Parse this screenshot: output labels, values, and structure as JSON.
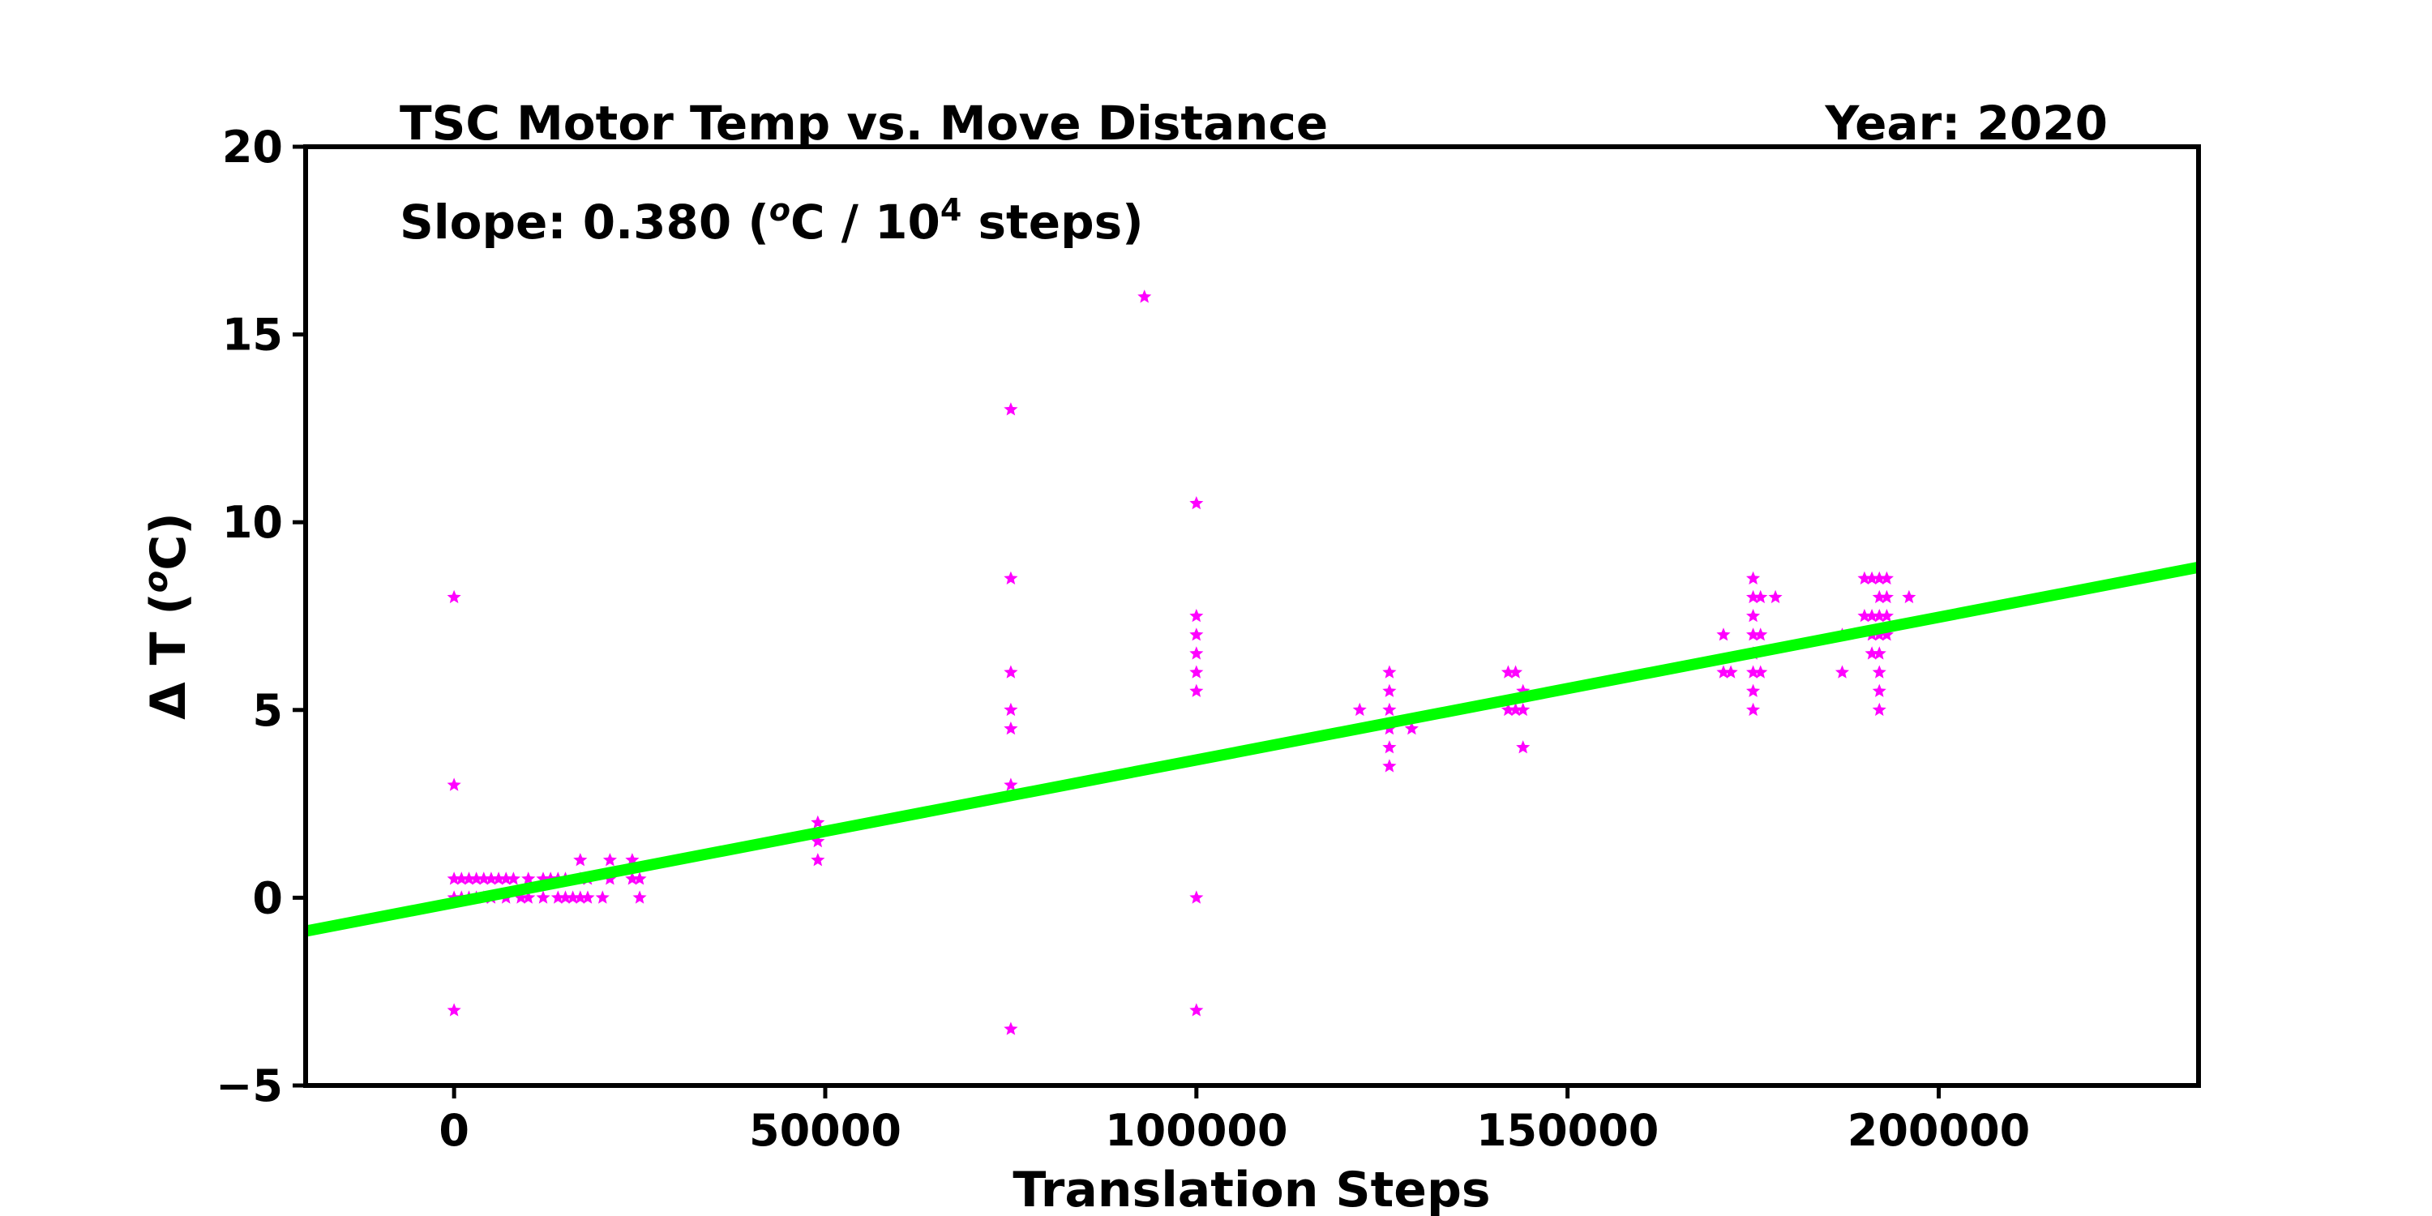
{
  "chart_data": {
    "type": "scatter",
    "title": "TSC Motor Temp vs. Move Distance",
    "year_label": "Year: 2020",
    "slope_annotation": {
      "prefix": "Slope:  0.380 (",
      "unit_superscript_o": "o",
      "unit_middle": "C / 10",
      "unit_superscript_exp": "4",
      "unit_suffix": " steps)"
    },
    "xlabel": "Translation Steps",
    "ylabel": {
      "prefix": "Δ T (",
      "superscript": "o",
      "suffix": "C)"
    },
    "xlim": [
      -20000,
      235000
    ],
    "ylim": [
      -5,
      20
    ],
    "xticks": [
      0,
      50000,
      100000,
      150000,
      200000
    ],
    "xtick_labels": [
      "0",
      "50000",
      "100000",
      "150000",
      "200000"
    ],
    "yticks": [
      -5,
      0,
      5,
      10,
      15,
      20
    ],
    "ytick_labels": [
      "−5",
      "0",
      "5",
      "10",
      "15",
      "20"
    ],
    "grid": false,
    "colors": {
      "points": "#ff00ff",
      "fit_line": "#00ff00",
      "frame": "#000000"
    },
    "fit_line": {
      "slope_per_step": 3.8e-05,
      "intercept": -0.13
    },
    "points": [
      [
        0,
        8
      ],
      [
        0,
        3
      ],
      [
        0,
        0.5
      ],
      [
        0,
        0
      ],
      [
        0,
        -3
      ],
      [
        1000,
        0.5
      ],
      [
        1000,
        0
      ],
      [
        2000,
        0.5
      ],
      [
        2000,
        0
      ],
      [
        3000,
        0.5
      ],
      [
        3000,
        0
      ],
      [
        4000,
        0.5
      ],
      [
        4000,
        0
      ],
      [
        5000,
        0.5
      ],
      [
        5000,
        0
      ],
      [
        6000,
        0.5
      ],
      [
        7000,
        0.5
      ],
      [
        7000,
        0
      ],
      [
        8000,
        0.5
      ],
      [
        9000,
        0
      ],
      [
        10000,
        0.5
      ],
      [
        10000,
        0
      ],
      [
        12000,
        0.5
      ],
      [
        12000,
        0
      ],
      [
        13000,
        0.5
      ],
      [
        14000,
        0.5
      ],
      [
        14000,
        0
      ],
      [
        15000,
        0.5
      ],
      [
        15000,
        0
      ],
      [
        16000,
        0
      ],
      [
        17000,
        1
      ],
      [
        17000,
        0.5
      ],
      [
        17000,
        0
      ],
      [
        18000,
        0.5
      ],
      [
        18000,
        0
      ],
      [
        20000,
        0
      ],
      [
        21000,
        1
      ],
      [
        21000,
        0.5
      ],
      [
        24000,
        1
      ],
      [
        24000,
        0.5
      ],
      [
        25000,
        0.5
      ],
      [
        25000,
        0
      ],
      [
        49000,
        2
      ],
      [
        49000,
        1.5
      ],
      [
        49000,
        1
      ],
      [
        75000,
        13
      ],
      [
        75000,
        8.5
      ],
      [
        75000,
        6
      ],
      [
        75000,
        5
      ],
      [
        75000,
        4.5
      ],
      [
        75000,
        3
      ],
      [
        75000,
        -3.5
      ],
      [
        93000,
        16
      ],
      [
        100000,
        10.5
      ],
      [
        100000,
        7.5
      ],
      [
        100000,
        7
      ],
      [
        100000,
        6.5
      ],
      [
        100000,
        6
      ],
      [
        100000,
        5.5
      ],
      [
        100000,
        0
      ],
      [
        100000,
        -3
      ],
      [
        122000,
        5
      ],
      [
        126000,
        6
      ],
      [
        126000,
        5.5
      ],
      [
        126000,
        5
      ],
      [
        126000,
        4.5
      ],
      [
        126000,
        4
      ],
      [
        126000,
        3.5
      ],
      [
        129000,
        4.5
      ],
      [
        142000,
        6
      ],
      [
        142000,
        5
      ],
      [
        143000,
        6
      ],
      [
        143000,
        5
      ],
      [
        144000,
        5.5
      ],
      [
        144000,
        5
      ],
      [
        144000,
        4
      ],
      [
        171000,
        7
      ],
      [
        171000,
        6
      ],
      [
        172000,
        6
      ],
      [
        175000,
        8.5
      ],
      [
        175000,
        8
      ],
      [
        175000,
        7.5
      ],
      [
        175000,
        7
      ],
      [
        175000,
        6.5
      ],
      [
        175000,
        6
      ],
      [
        175000,
        5.5
      ],
      [
        175000,
        5
      ],
      [
        176000,
        8
      ],
      [
        176000,
        7
      ],
      [
        176000,
        6
      ],
      [
        178000,
        8
      ],
      [
        187000,
        7
      ],
      [
        187000,
        6
      ],
      [
        190000,
        8.5
      ],
      [
        190000,
        7.5
      ],
      [
        191000,
        8.5
      ],
      [
        191000,
        7.5
      ],
      [
        191000,
        7
      ],
      [
        191000,
        6.5
      ],
      [
        192000,
        8.5
      ],
      [
        192000,
        8
      ],
      [
        192000,
        7.5
      ],
      [
        192000,
        7
      ],
      [
        192000,
        6.5
      ],
      [
        192000,
        6
      ],
      [
        192000,
        5.5
      ],
      [
        192000,
        5
      ],
      [
        193000,
        8.5
      ],
      [
        193000,
        8
      ],
      [
        193000,
        7.5
      ],
      [
        193000,
        7
      ],
      [
        196000,
        8
      ]
    ]
  }
}
